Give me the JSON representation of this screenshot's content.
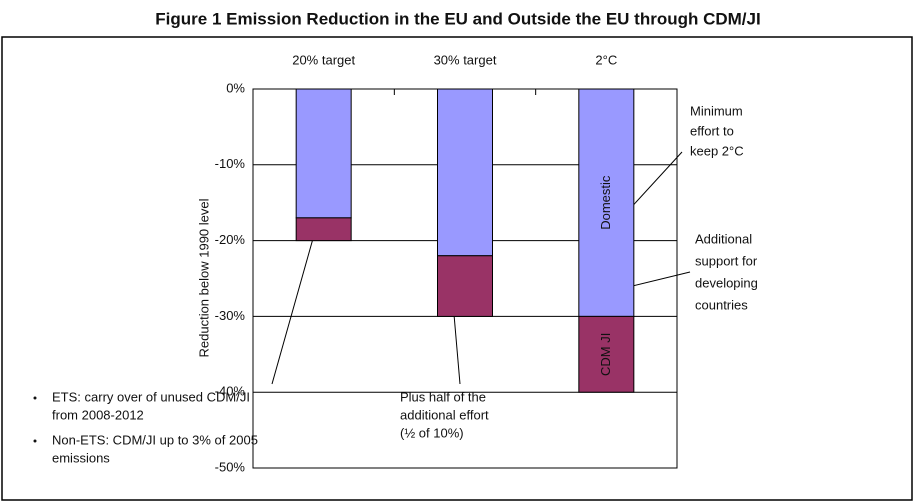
{
  "chart_data": {
    "type": "bar",
    "stacked": true,
    "title": "Figure 1   Emission Reduction in the EU and Outside the EU through CDM/JI",
    "y_label": "Reduction below 1990 level",
    "categories": [
      "20% target",
      "30% target",
      "2°C"
    ],
    "series": [
      {
        "name": "Domestic",
        "color": "#9999ff",
        "values": [
          -17,
          -22,
          -30
        ]
      },
      {
        "name": "CDM JI",
        "color": "#993366",
        "values": [
          -3,
          -8,
          -10
        ]
      }
    ],
    "ylim": [
      -50,
      0
    ],
    "yticks": [
      {
        "value": 0,
        "label": "0%"
      },
      {
        "value": -10,
        "label": "-10%"
      },
      {
        "value": -20,
        "label": "-20%"
      },
      {
        "value": -30,
        "label": "-30%"
      },
      {
        "value": -40,
        "label": "-40%"
      },
      {
        "value": -50,
        "label": "-50%"
      }
    ],
    "grid": true,
    "annotations": [
      {
        "lines": [
          "Minimum",
          "effort to",
          "keep  2°C"
        ]
      },
      {
        "lines": [
          "Additional",
          "support for",
          "developing",
          "countries"
        ]
      },
      {
        "lines": [
          "Plus half of the",
          "additional effort",
          "(½ of 10%)"
        ]
      }
    ],
    "notes": [
      {
        "lines": [
          "ETS: carry over of unused CDM/JI",
          "from 2008-2012"
        ]
      },
      {
        "lines": [
          "Non-ETS: CDM/JI up to 3% of 2005",
          "emissions"
        ]
      }
    ]
  }
}
